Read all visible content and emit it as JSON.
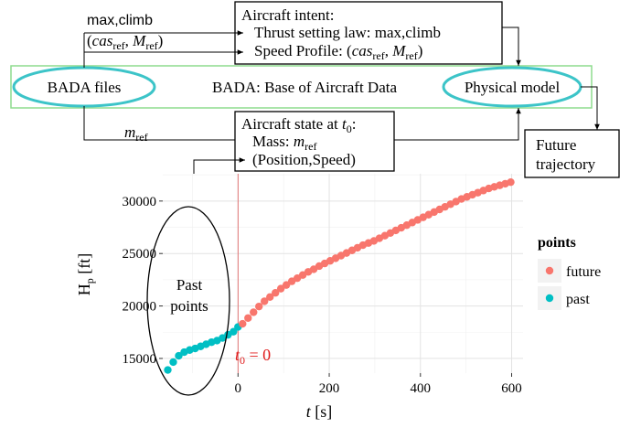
{
  "diagram": {
    "bada_label": "BADA: Base of Aircraft Data",
    "bada_files": "BADA files",
    "physical_model": "Physical model",
    "max_climb": "max,climb",
    "cas_mref": "(cas_ref, M_ref)",
    "mref": "m_ref",
    "intent": {
      "title": "Aircraft intent:",
      "line1": "Thrust setting law: max,climb",
      "line2": "Speed Profile: (cas_ref, M_ref)"
    },
    "state": {
      "title": "Aircraft state at t0:",
      "line1": "Mass: m_ref",
      "line2": "(Position,Speed)"
    },
    "future": {
      "line1": "Future",
      "line2": "trajectory"
    },
    "past_points": {
      "line1": "Past",
      "line2": "points"
    },
    "t0_label": "t0 = 0",
    "colors": {
      "future": "#f8766d",
      "past": "#00bfc4",
      "bada_box": "#8ddc8d",
      "ellipse": "#3cc4c8",
      "t0_line": "#e05a5a",
      "t0_text": "#e01b1b"
    }
  },
  "chart_data": {
    "type": "scatter",
    "xlabel": "t [s]",
    "ylabel": "H_p [ft]",
    "xticks": [
      0,
      200,
      400,
      600
    ],
    "yticks": [
      15000,
      20000,
      25000,
      30000
    ],
    "xlim": [
      -165,
      625
    ],
    "ylim": [
      13600,
      32600
    ],
    "grid": true,
    "legend": {
      "title": "points",
      "position": "right"
    },
    "series": [
      {
        "name": "past",
        "x": [
          -154,
          -142,
          -130,
          -118,
          -106,
          -94,
          -82,
          -70,
          -58,
          -46,
          -34,
          -22,
          -10,
          0
        ],
        "y": [
          13900,
          14650,
          15250,
          15600,
          15800,
          15950,
          16150,
          16350,
          16550,
          16700,
          16950,
          17250,
          17550,
          18000
        ]
      },
      {
        "name": "future",
        "x": [
          10,
          22,
          34,
          46,
          58,
          70,
          82,
          94,
          106,
          118,
          130,
          142,
          154,
          166,
          178,
          190,
          202,
          214,
          226,
          238,
          250,
          262,
          274,
          286,
          298,
          310,
          322,
          334,
          346,
          358,
          370,
          382,
          394,
          406,
          418,
          430,
          442,
          454,
          466,
          478,
          490,
          502,
          514,
          526,
          538,
          550,
          562,
          574,
          586,
          598
        ],
        "y": [
          18300,
          18850,
          19400,
          19950,
          20450,
          20850,
          21250,
          21650,
          22000,
          22350,
          22650,
          22950,
          23250,
          23500,
          23800,
          24050,
          24300,
          24550,
          24800,
          25050,
          25300,
          25550,
          25800,
          26000,
          26200,
          26450,
          26700,
          26950,
          27200,
          27450,
          27700,
          27950,
          28200,
          28450,
          28700,
          28950,
          29200,
          29450,
          29700,
          29950,
          30200,
          30400,
          30600,
          30800,
          31000,
          31200,
          31350,
          31500,
          31650,
          31800
        ]
      }
    ]
  }
}
